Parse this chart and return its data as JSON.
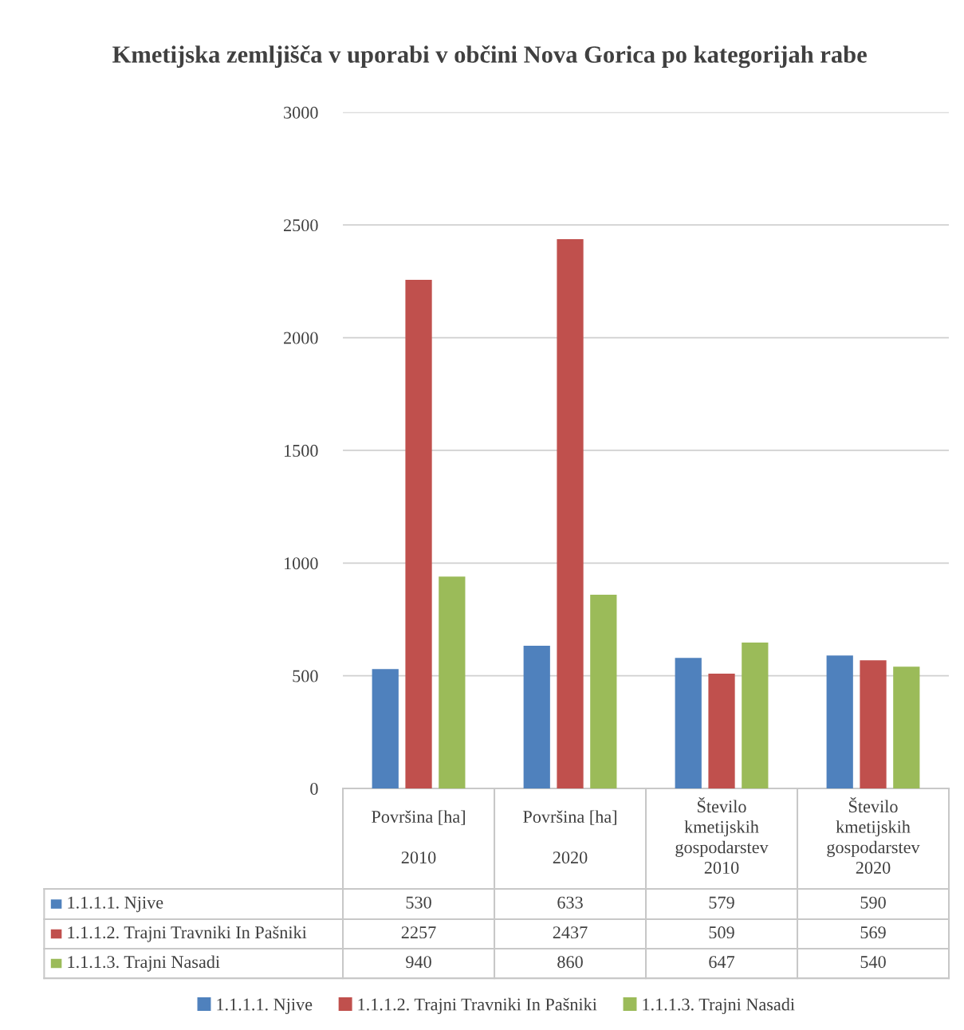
{
  "chart_data": {
    "type": "bar",
    "title": "Kmetijska zemljišča v uporabi v občini Nova Gorica po kategorijah rabe",
    "categories": [
      "Površina [ha]\n\n2010",
      "Površina [ha]\n\n2020",
      "Število\nkmetijskih\ngospodarstev\n2010",
      "Število\nkmetijskih\ngospodarstev\n2020"
    ],
    "series": [
      {
        "name": "1.1.1.1. Njive",
        "color": "#4f81bd",
        "values": [
          530,
          633,
          579,
          590
        ]
      },
      {
        "name": "1.1.1.2. Trajni Travniki In Pašniki",
        "color": "#c0504d",
        "values": [
          2257,
          2437,
          509,
          569
        ]
      },
      {
        "name": "1.1.1.3. Trajni Nasadi",
        "color": "#9bbb59",
        "values": [
          940,
          860,
          647,
          540
        ]
      }
    ],
    "ylim": [
      0,
      3000
    ],
    "yticks": [
      0,
      500,
      1000,
      1500,
      2000,
      2500,
      3000
    ],
    "grid": "y",
    "legend": "bottom",
    "data_labels": true
  }
}
